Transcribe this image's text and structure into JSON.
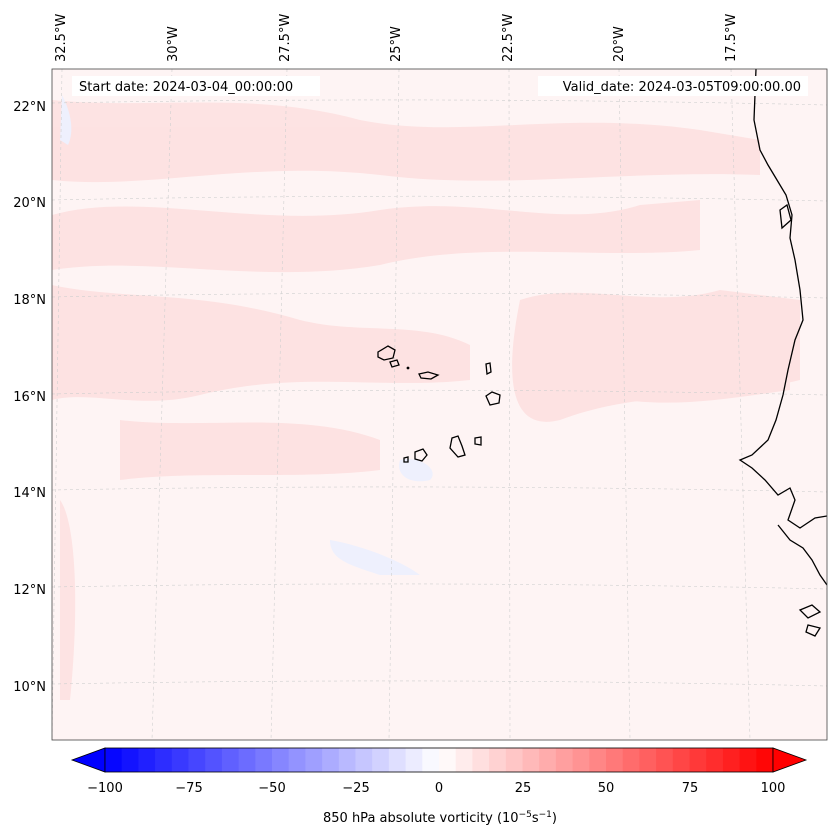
{
  "header": {
    "start_date": "Start date: 2024-03-04_00:00:00",
    "valid_date": "Valid_date: 2024-03-05T09:00:00.00"
  },
  "map": {
    "lon_labels": [
      "32.5°W",
      "30°W",
      "27.5°W",
      "25°W",
      "22.5°W",
      "20°W",
      "17.5°W"
    ],
    "lat_labels": [
      "22°N",
      "20°N",
      "18°N",
      "16°N",
      "14°N",
      "12°N",
      "10°N"
    ],
    "colors": {
      "land_outline": "#000000",
      "grid": "#bdbdbd",
      "positive": "#ff0000",
      "negative": "#0000ff"
    }
  },
  "colorbar": {
    "ticks": [
      "−100",
      "−75",
      "−50",
      "−25",
      "0",
      "25",
      "50",
      "75",
      "100"
    ],
    "label": "850 hPa absolute vorticity (10",
    "label_exp1": "−5",
    "label_mid": "s",
    "label_exp2": "−1",
    "label_end": ")"
  }
}
